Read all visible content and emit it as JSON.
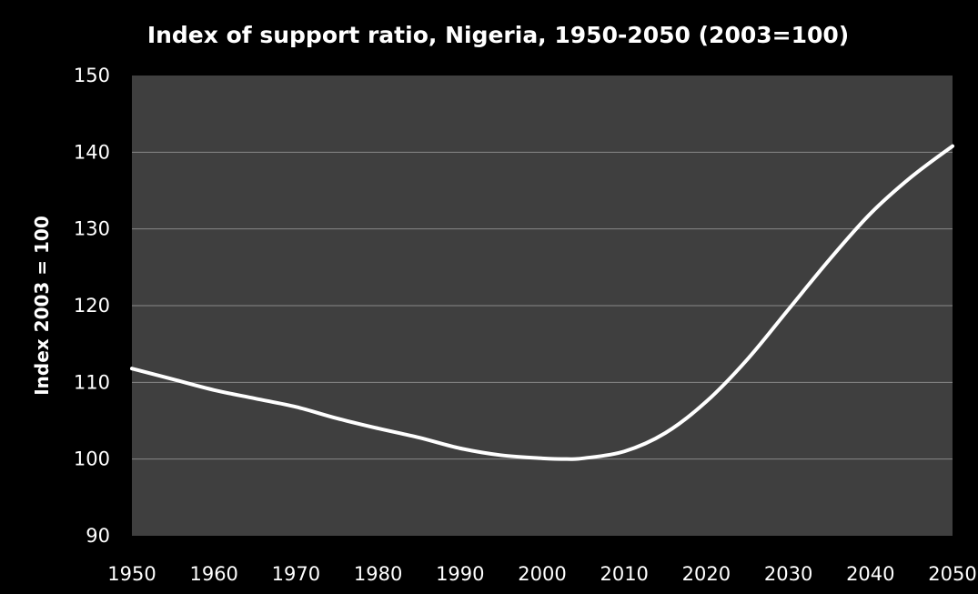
{
  "chart_data": {
    "type": "line",
    "title": "Index of support ratio, Nigeria, 1950-2050 (2003=100)",
    "xlabel": "",
    "ylabel": "Index 2003 = 100",
    "xlim": [
      1950,
      2050
    ],
    "ylim": [
      90,
      150
    ],
    "x_ticks": [
      1950,
      1960,
      1970,
      1980,
      1990,
      2000,
      2010,
      2020,
      2030,
      2040,
      2050
    ],
    "y_ticks": [
      90,
      100,
      110,
      120,
      130,
      140,
      150
    ],
    "grid": true,
    "legend": "none",
    "colors": {
      "background": "#000000",
      "plot_area": "#3f3f3f",
      "gridline": "#888888",
      "line": "#ffffff",
      "text": "#ffffff"
    },
    "series": [
      {
        "x": [
          1950,
          1955,
          1960,
          1965,
          1970,
          1975,
          1980,
          1985,
          1990,
          1995,
          2000,
          2003,
          2005,
          2010,
          2015,
          2020,
          2025,
          2030,
          2035,
          2040,
          2045,
          2050
        ],
        "values": [
          111.8,
          110.4,
          109.0,
          107.9,
          106.8,
          105.3,
          104.0,
          102.8,
          101.4,
          100.5,
          100.1,
          100.0,
          100.1,
          101.0,
          103.4,
          107.5,
          113.0,
          119.5,
          126.0,
          132.0,
          136.8,
          140.8
        ]
      }
    ]
  }
}
